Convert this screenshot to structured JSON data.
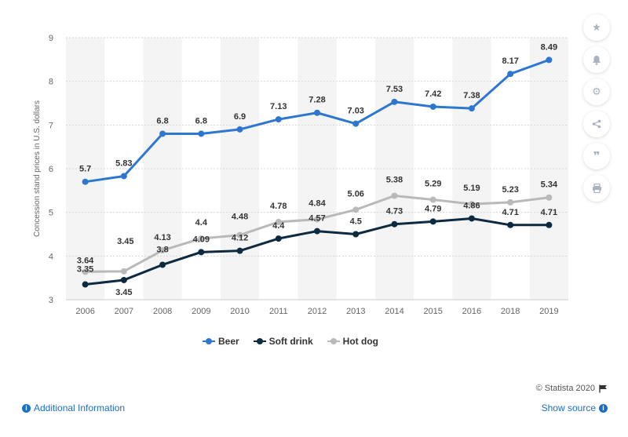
{
  "chart_data": {
    "type": "line",
    "title": "",
    "xlabel": "",
    "ylabel": "Concession stand prices in U.S. dollars",
    "ylim": [
      3,
      9
    ],
    "yticks": [
      3,
      4,
      5,
      6,
      7,
      8,
      9
    ],
    "grid": true,
    "legend_position": "bottom",
    "categories": [
      "2006",
      "2007",
      "2008",
      "2009",
      "2010",
      "2011",
      "2012",
      "2013",
      "2014",
      "2015",
      "2016",
      "2018",
      "2019"
    ],
    "series": [
      {
        "name": "Beer",
        "color": "#2e77d0",
        "values": [
          5.7,
          5.83,
          6.8,
          6.8,
          6.9,
          7.13,
          7.28,
          7.03,
          7.53,
          7.42,
          7.38,
          8.17,
          8.49
        ]
      },
      {
        "name": "Soft drink",
        "color": "#0d2a40",
        "values": [
          3.35,
          3.45,
          3.8,
          4.09,
          4.12,
          4.4,
          4.57,
          4.5,
          4.73,
          4.79,
          4.86,
          4.71,
          4.71
        ]
      },
      {
        "name": "Hot dog",
        "color": "#b9b9b9",
        "values": [
          3.64,
          3.65,
          4.13,
          4.4,
          4.48,
          4.78,
          4.84,
          5.06,
          5.38,
          5.29,
          5.19,
          5.23,
          5.34
        ]
      }
    ],
    "value_labels": {
      "Beer": [
        "5.7",
        "5.83",
        "6.8",
        "6.8",
        "6.9",
        "7.13",
        "7.28",
        "7.03",
        "7.53",
        "7.42",
        "7.38",
        "8.17",
        "8.49"
      ],
      "Soft drink": [
        "3.35",
        "3.45",
        "3.8",
        "4.09",
        "4.12",
        "4.4",
        "4.57",
        "4.5",
        "4.73",
        "4.79",
        "4.86",
        "4.71",
        "4.71"
      ],
      "Hot dog": [
        "3.64",
        "",
        "4.13",
        "4.4",
        "4.48",
        "4.78",
        "4.84",
        "5.06",
        "5.38",
        "5.29",
        "5.19",
        "5.23",
        "5.34"
      ]
    },
    "extra_label": "3.45"
  },
  "legend": {
    "beer": "Beer",
    "soft_drink": "Soft drink",
    "hot_dog": "Hot dog"
  },
  "sidebar": {
    "icons": [
      "star-icon",
      "bell-icon",
      "gear-icon",
      "share-icon",
      "quote-icon",
      "print-icon"
    ]
  },
  "footer": {
    "credit": "© Statista 2020",
    "additional_info": "Additional Information",
    "show_source": "Show source"
  }
}
